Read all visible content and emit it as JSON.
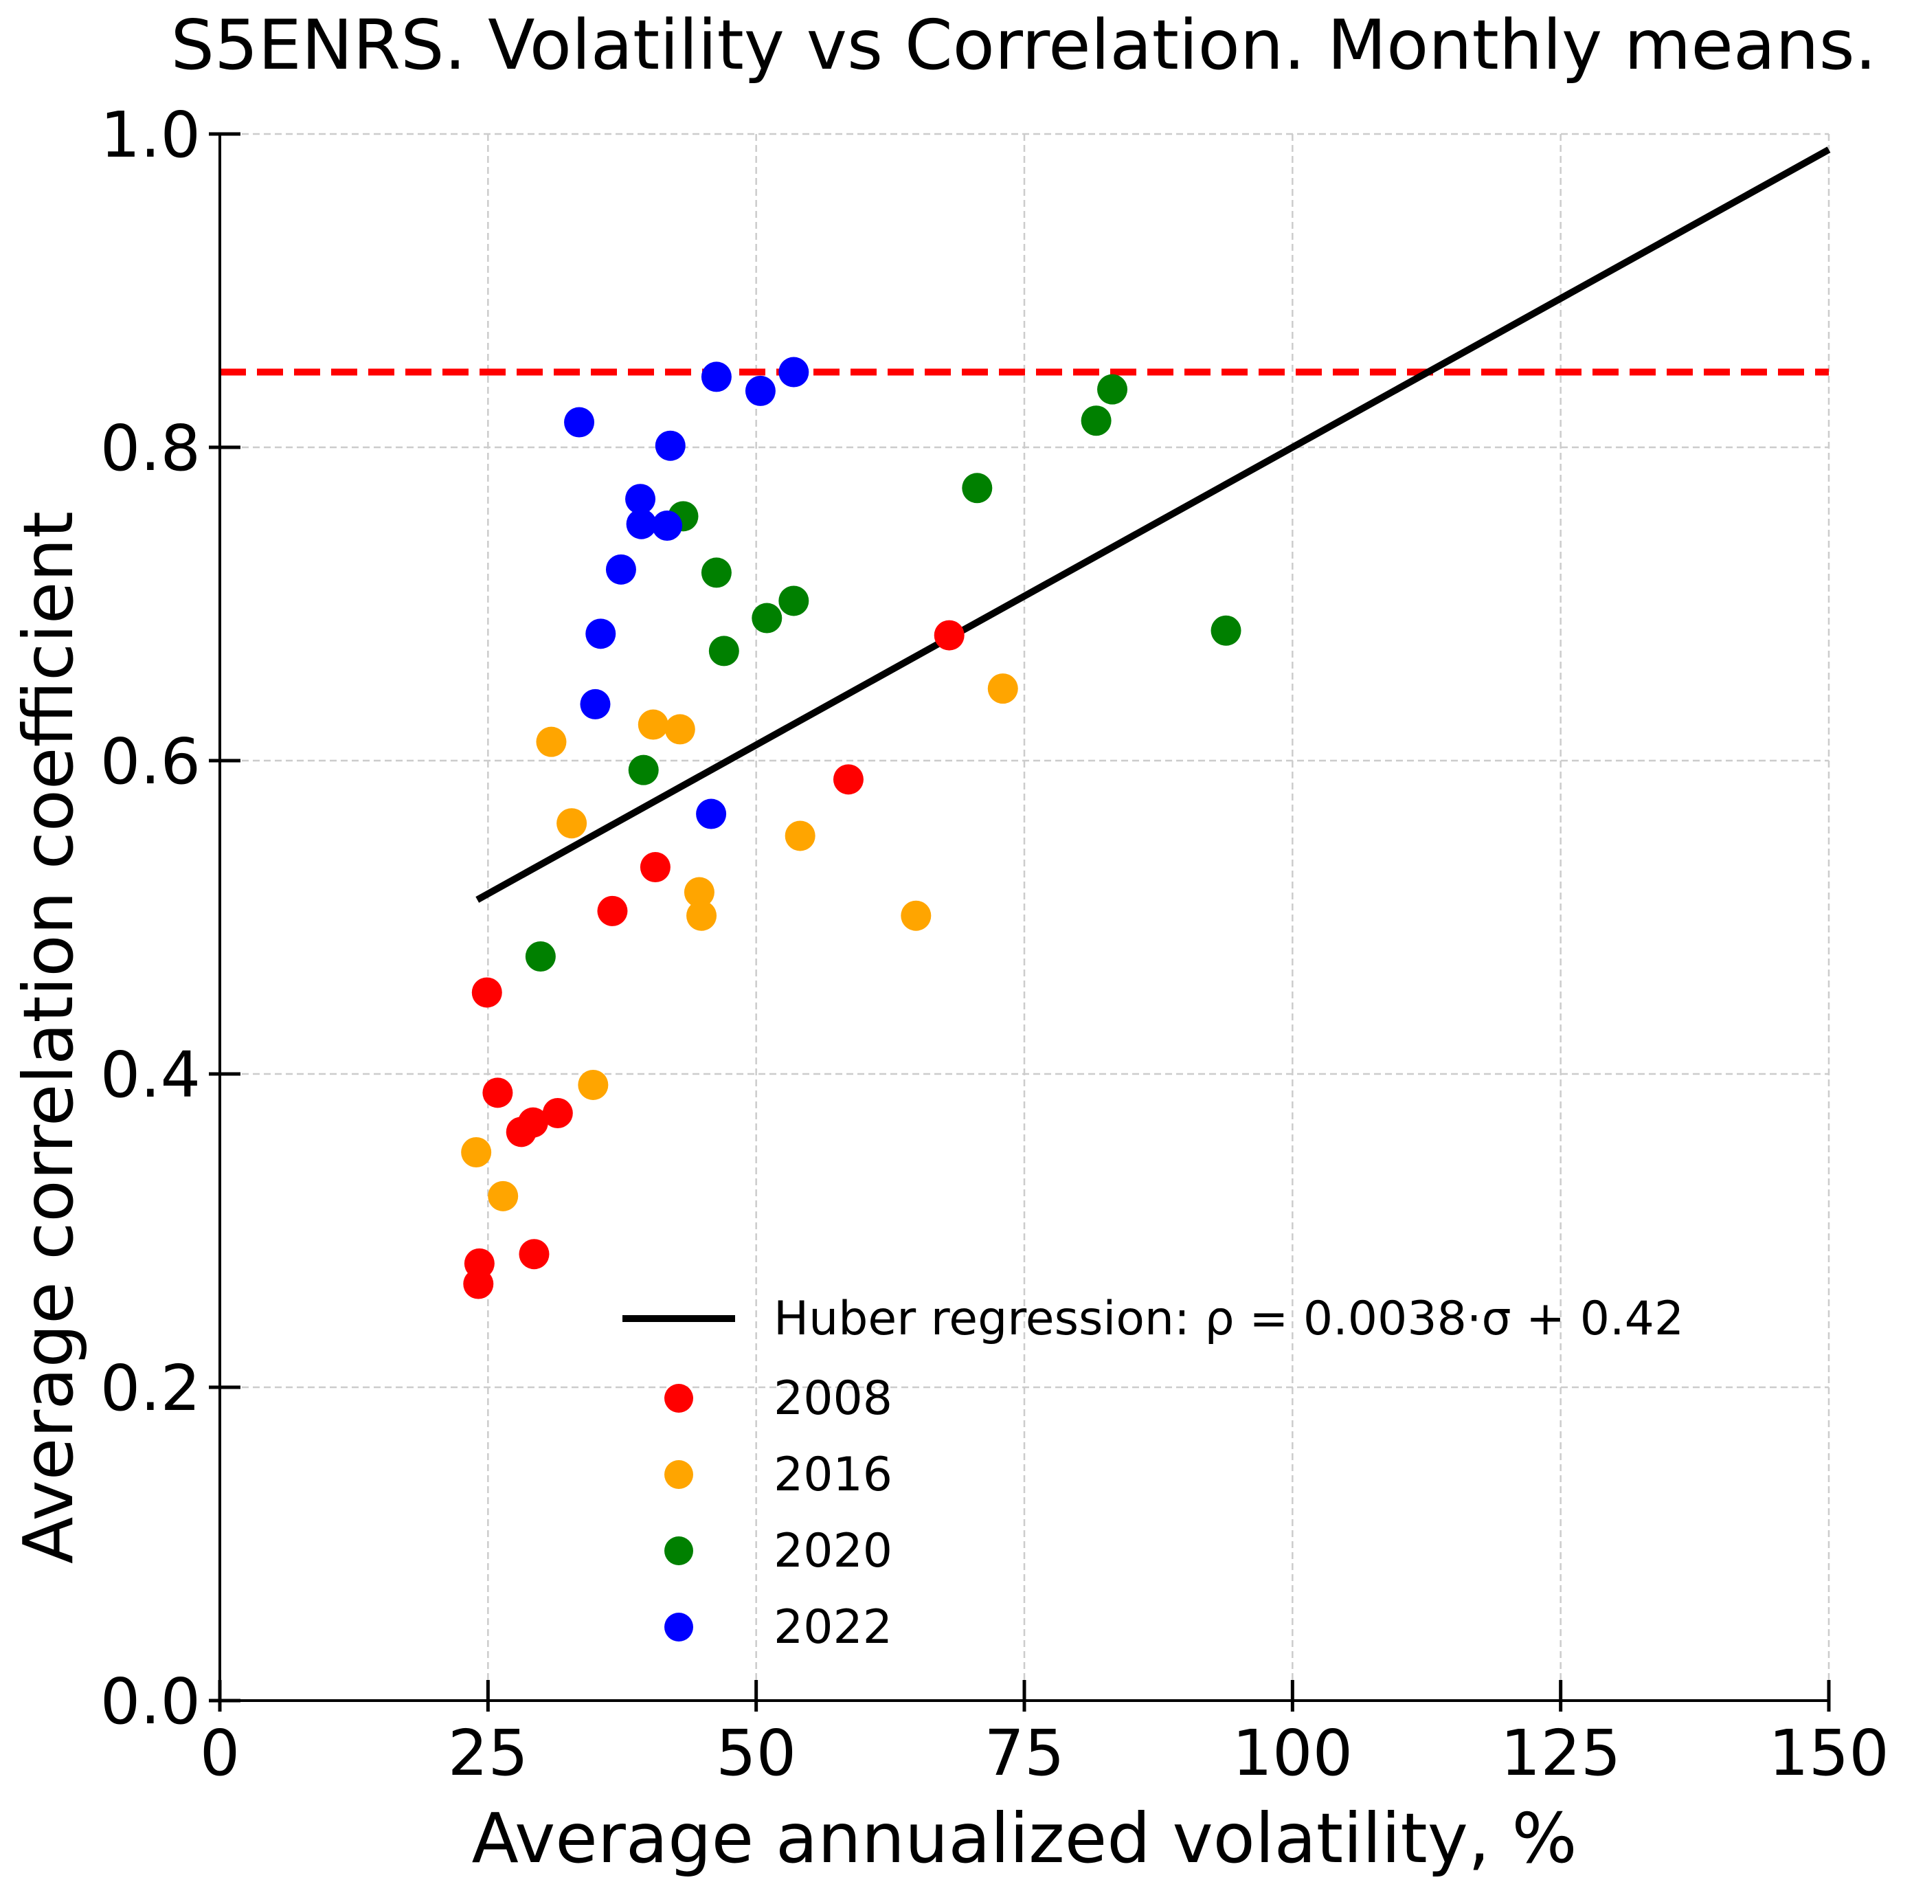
{
  "chart_data": {
    "type": "scatter",
    "title": "S5ENRS. Volatility vs Correlation. Monthly means.",
    "xlabel": "Average annualized volatility, %",
    "ylabel": "Average correlation coefficient",
    "xlim": [
      0,
      150
    ],
    "ylim": [
      0,
      1.0
    ],
    "xticks": [
      "0",
      "25",
      "50",
      "75",
      "100",
      "125",
      "150"
    ],
    "yticks": [
      "0.0",
      "0.2",
      "0.4",
      "0.6",
      "0.8",
      "1.0"
    ],
    "grid": true,
    "legend_position": "lower-right",
    "threshold_line": {
      "y": 0.848,
      "color": "#ff0000",
      "style": "dashed"
    },
    "regression": {
      "label": "Huber regression: ρ = 0.0038·σ + 0.42",
      "slope": 0.0038,
      "intercept": 0.42,
      "x_range": [
        24,
        150
      ],
      "color": "#000000"
    },
    "series": [
      {
        "name": "2008",
        "color": "#ff0000",
        "points": [
          [
            24.1,
            0.266
          ],
          [
            24.2,
            0.279
          ],
          [
            24.9,
            0.452
          ],
          [
            25.9,
            0.388
          ],
          [
            28.1,
            0.363
          ],
          [
            29.2,
            0.369
          ],
          [
            29.3,
            0.285
          ],
          [
            31.5,
            0.375
          ],
          [
            36.6,
            0.504
          ],
          [
            40.6,
            0.532
          ],
          [
            58.6,
            0.588
          ],
          [
            68.0,
            0.68
          ]
        ]
      },
      {
        "name": "2016",
        "color": "#ffa500",
        "points": [
          [
            23.9,
            0.35
          ],
          [
            26.4,
            0.322
          ],
          [
            30.9,
            0.612
          ],
          [
            32.8,
            0.56
          ],
          [
            34.8,
            0.393
          ],
          [
            40.4,
            0.623
          ],
          [
            42.9,
            0.62
          ],
          [
            44.7,
            0.516
          ],
          [
            44.9,
            0.501
          ],
          [
            54.1,
            0.552
          ],
          [
            64.9,
            0.501
          ],
          [
            73.0,
            0.646
          ]
        ]
      },
      {
        "name": "2020",
        "color": "#008000",
        "points": [
          [
            29.9,
            0.475
          ],
          [
            39.5,
            0.594
          ],
          [
            43.2,
            0.756
          ],
          [
            46.3,
            0.72
          ],
          [
            47.0,
            0.67
          ],
          [
            51.0,
            0.691
          ],
          [
            53.5,
            0.702
          ],
          [
            70.6,
            0.774
          ],
          [
            81.7,
            0.817
          ],
          [
            83.2,
            0.837
          ],
          [
            93.8,
            0.683
          ]
        ]
      },
      {
        "name": "2022",
        "color": "#0000ff",
        "points": [
          [
            33.5,
            0.816
          ],
          [
            35.0,
            0.636
          ],
          [
            35.5,
            0.681
          ],
          [
            37.4,
            0.722
          ],
          [
            39.2,
            0.767
          ],
          [
            39.3,
            0.751
          ],
          [
            41.7,
            0.75
          ],
          [
            42.0,
            0.801
          ],
          [
            45.8,
            0.566
          ],
          [
            46.3,
            0.845
          ],
          [
            50.4,
            0.836
          ],
          [
            53.5,
            0.848
          ]
        ]
      }
    ]
  }
}
